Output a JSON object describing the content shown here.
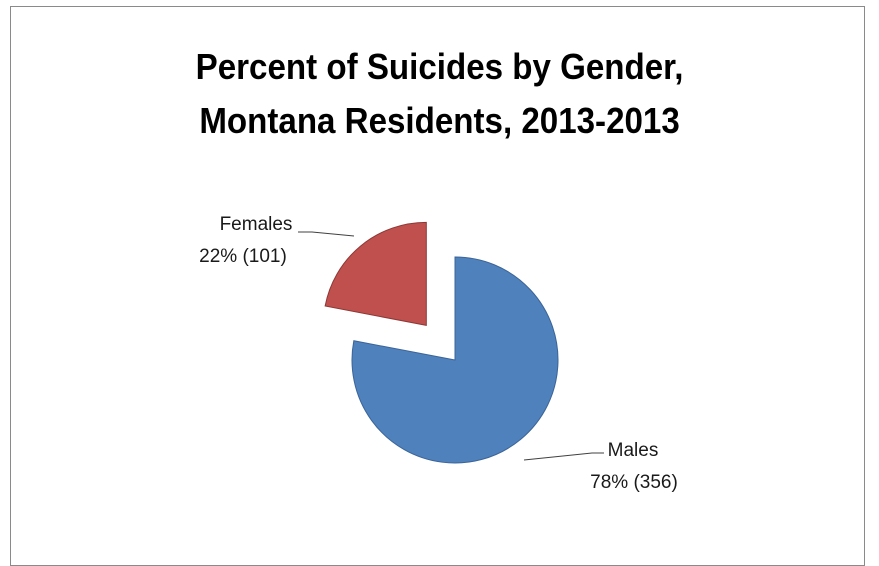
{
  "chart_data": {
    "type": "pie",
    "title_lines": [
      "Percent of Suicides by Gender,",
      "Montana Residents, 2013-2013"
    ],
    "slices": [
      {
        "label": "Males",
        "percent": 78,
        "count": 356,
        "value_text": "78% (356)",
        "color": "#4f81bd",
        "exploded": false
      },
      {
        "label": "Females",
        "percent": 22,
        "count": 101,
        "value_text": "22% (101)",
        "color": "#c0504d",
        "exploded": true
      }
    ],
    "legend": "none"
  }
}
